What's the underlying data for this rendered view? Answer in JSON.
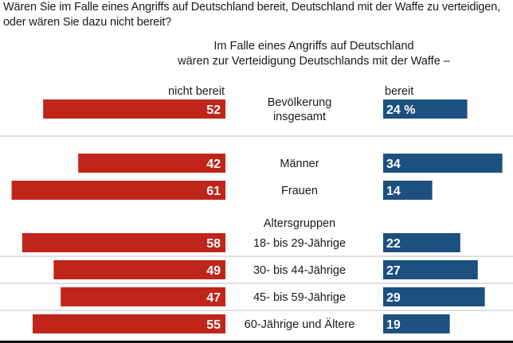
{
  "question": [
    "Wären Sie im Falle eines Angriffs auf Deutschland bereit, Deutschland mit der Waffe zu verteidigen,",
    "oder wären Sie dazu nicht bereit?"
  ],
  "heading": [
    "Im Falle eines Angriffs auf Deutschland",
    "wären zur Verteidigung Deutschlands mit der Waffe –"
  ],
  "colors": {
    "left": "#c0251a",
    "right": "#1d4f7f",
    "separator": "#bfbfbf",
    "text": "#1a1a1a"
  },
  "chart_data": {
    "type": "bar",
    "layout": "diverging-horizontal",
    "series": [
      {
        "name": "nicht bereit",
        "side": "left"
      },
      {
        "name": "bereit",
        "side": "right"
      }
    ],
    "rows": [
      {
        "category": [
          "Bevölkerung",
          "insgesamt"
        ],
        "nicht_bereit": 52,
        "bereit": 24,
        "bereit_label": "24 %",
        "nicht_bereit_label": "52"
      },
      {
        "category": [
          "Männer"
        ],
        "nicht_bereit": 42,
        "bereit": 34,
        "bereit_label": "34",
        "nicht_bereit_label": "42"
      },
      {
        "category": [
          "Frauen"
        ],
        "nicht_bereit": 61,
        "bereit": 14,
        "bereit_label": "14",
        "nicht_bereit_label": "61"
      },
      {
        "category": [
          "18- bis 29-Jährige"
        ],
        "nicht_bereit": 58,
        "bereit": 22,
        "bereit_label": "22",
        "nicht_bereit_label": "58"
      },
      {
        "category": [
          "30- bis 44-Jährige"
        ],
        "nicht_bereit": 49,
        "bereit": 27,
        "bereit_label": "27",
        "nicht_bereit_label": "49"
      },
      {
        "category": [
          "45- bis 59-Jährige"
        ],
        "nicht_bereit": 47,
        "bereit": 29,
        "bereit_label": "29",
        "nicht_bereit_label": "47"
      },
      {
        "category": [
          "60-Jährige und Ältere"
        ],
        "nicht_bereit": 55,
        "bereit": 19,
        "bereit_label": "19",
        "nicht_bereit_label": "55"
      }
    ],
    "group_label": "Altersgruppen",
    "unit": "%"
  }
}
